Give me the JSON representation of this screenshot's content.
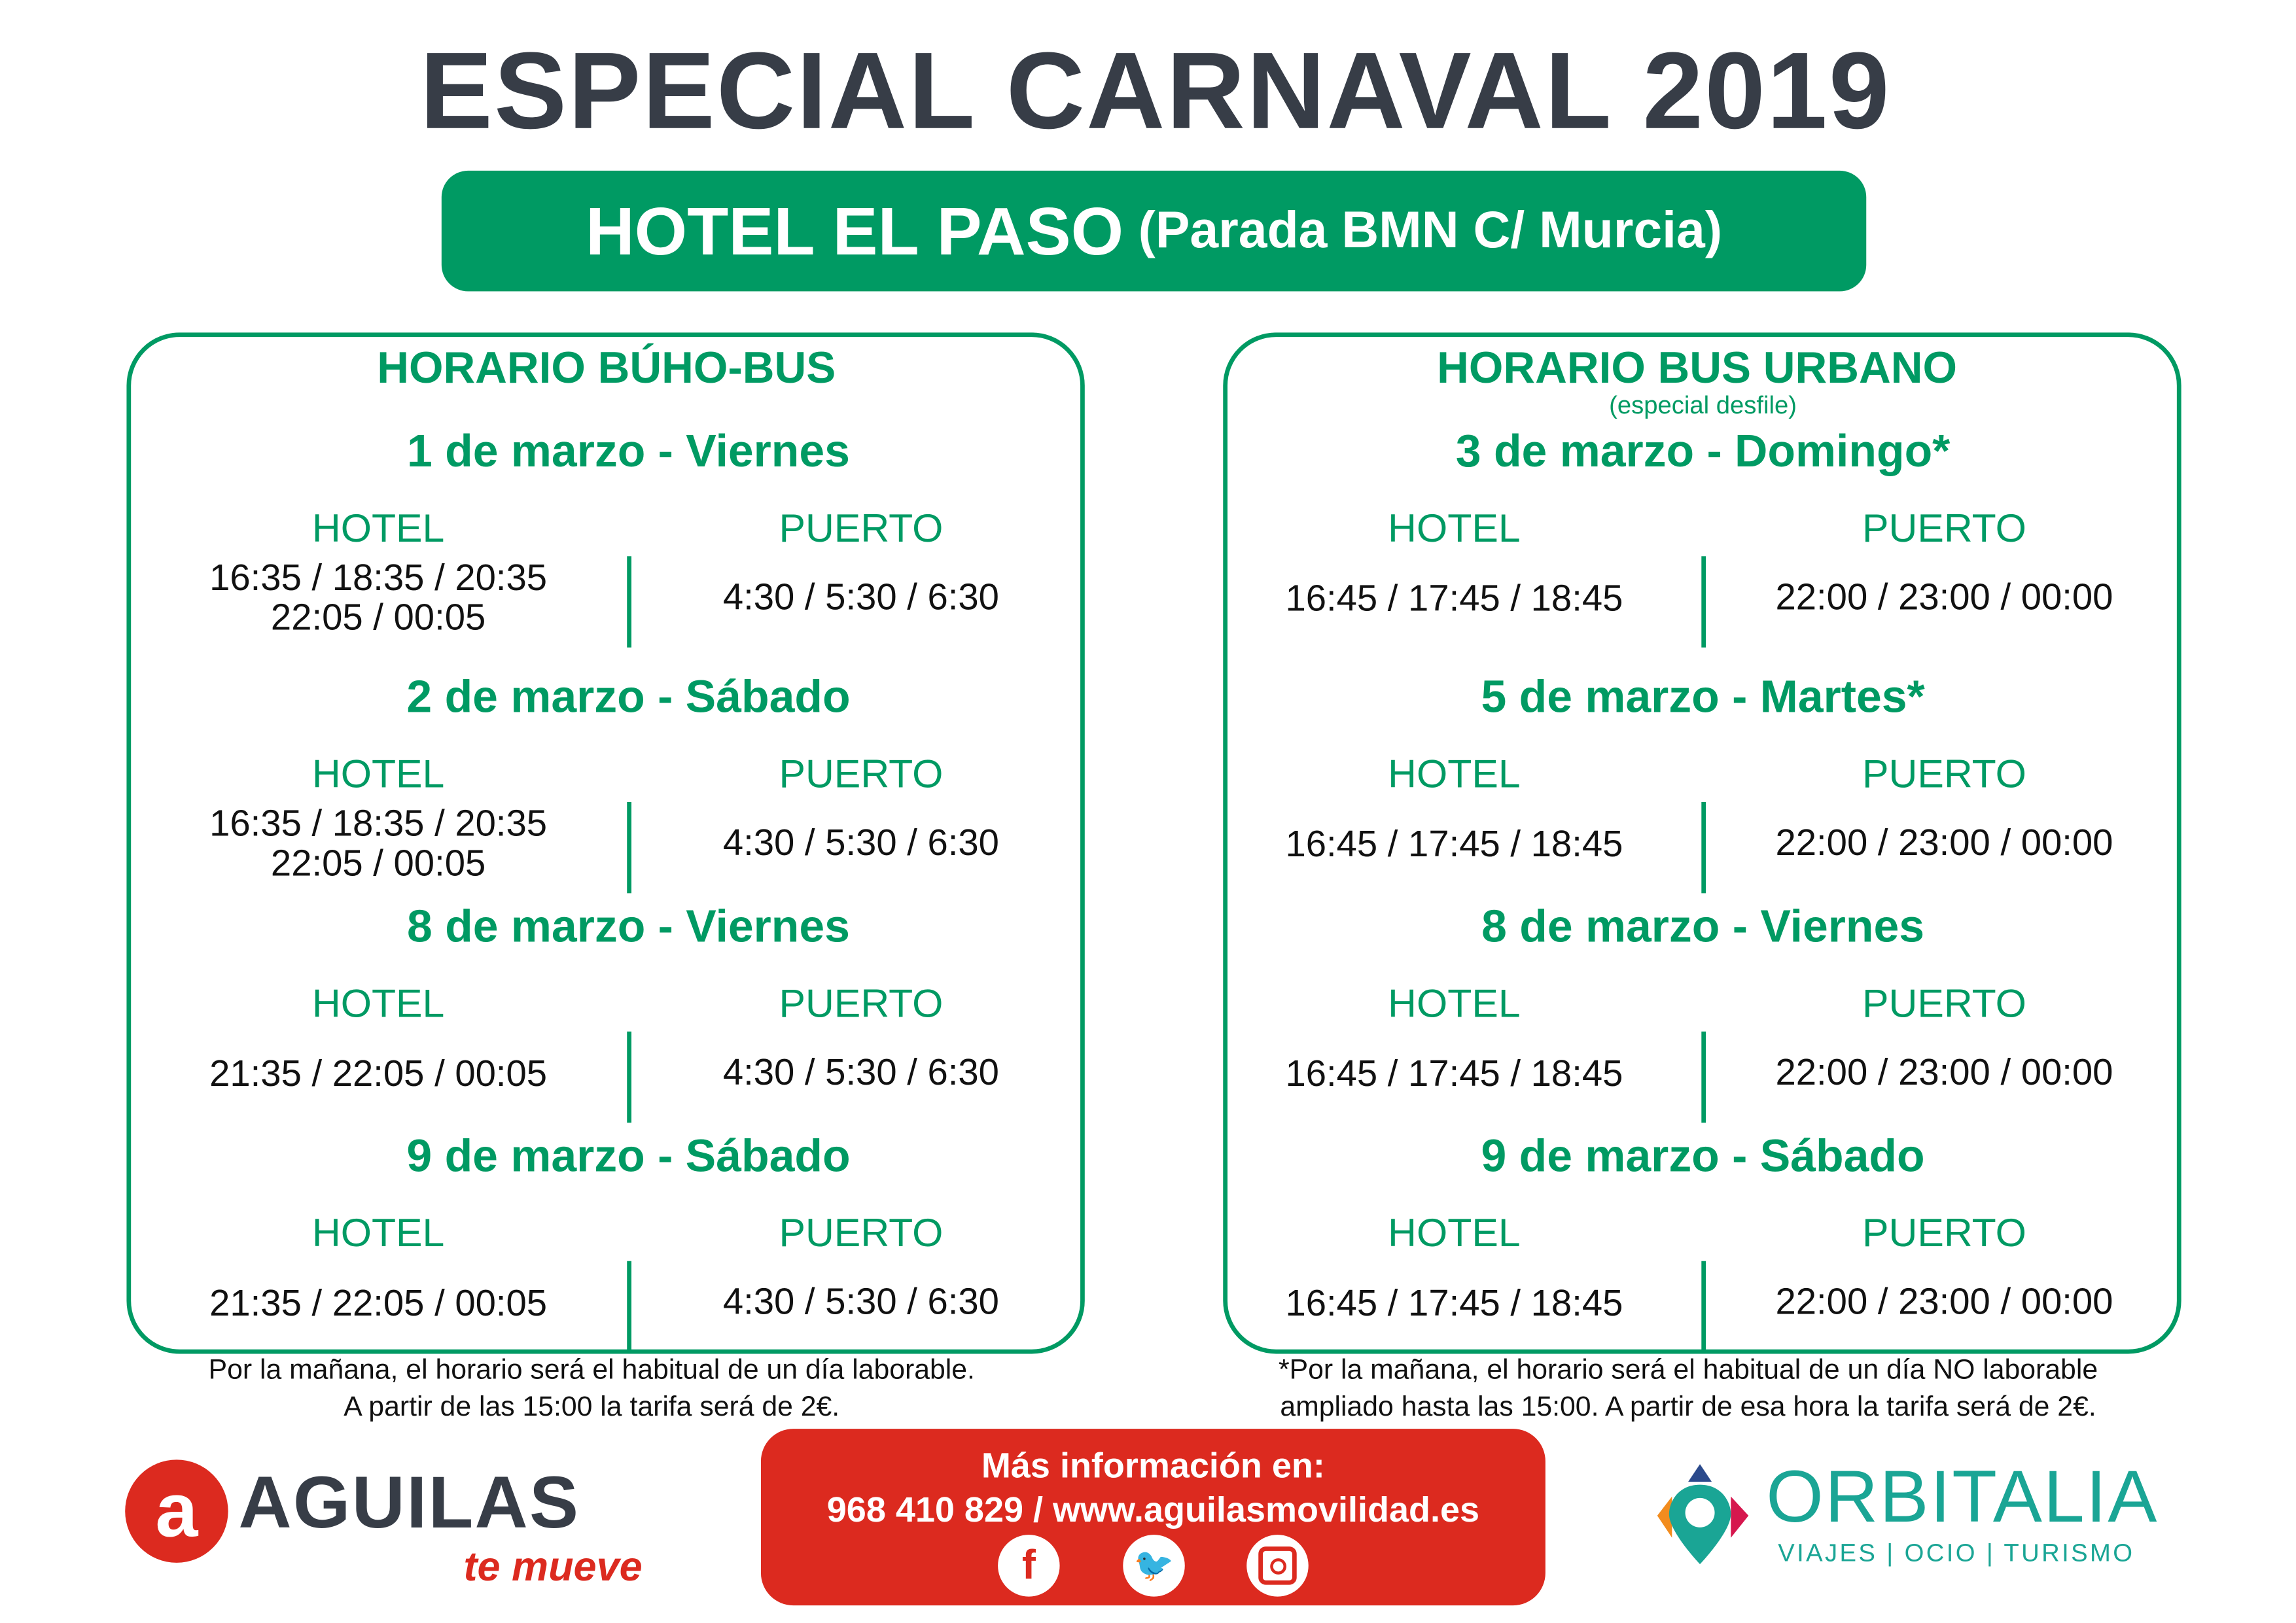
{
  "title": "ESPECIAL CARNAVAL 2019",
  "banner": {
    "main": "HOTEL EL PASO",
    "stop": "(Parada BMN C/ Murcia)"
  },
  "colors": {
    "green": "#009a63",
    "red": "#dc2a1f",
    "dark": "#373d47",
    "teal": "#1aa595"
  },
  "left": {
    "header": "HORARIO BÚHO-BUS",
    "subheader": "",
    "sections": [
      {
        "date": "1 de marzo - Viernes",
        "hotel_label": "HOTEL",
        "puerto_label": "PUERTO",
        "hotel_times": [
          "16:35 / 18:35 / 20:35",
          "22:05 / 00:05"
        ],
        "puerto_times": "4:30 / 5:30 / 6:30"
      },
      {
        "date": "2 de marzo - Sábado",
        "hotel_label": "HOTEL",
        "puerto_label": "PUERTO",
        "hotel_times": [
          "16:35 / 18:35 / 20:35",
          "22:05 / 00:05"
        ],
        "puerto_times": "4:30 / 5:30 / 6:30"
      },
      {
        "date": "8 de marzo - Viernes",
        "hotel_label": "HOTEL",
        "puerto_label": "PUERTO",
        "hotel_times": [
          "21:35 / 22:05 / 00:05"
        ],
        "puerto_times": "4:30 / 5:30 / 6:30"
      },
      {
        "date": "9 de marzo - Sábado",
        "hotel_label": "HOTEL",
        "puerto_label": "PUERTO",
        "hotel_times": [
          "21:35 / 22:05 / 00:05"
        ],
        "puerto_times": "4:30 / 5:30 / 6:30"
      }
    ],
    "note": [
      "Por la mañana, el horario será el habitual de un día laborable.",
      "A partir de las 15:00 la tarifa será de 2€."
    ]
  },
  "right": {
    "header": "HORARIO BUS URBANO",
    "subheader": "(especial desfile)",
    "sections": [
      {
        "date": "3 de marzo - Domingo*",
        "hotel_label": "HOTEL",
        "puerto_label": "PUERTO",
        "hotel_times": [
          "16:45 / 17:45 / 18:45"
        ],
        "puerto_times": "22:00 / 23:00 / 00:00"
      },
      {
        "date": "5 de marzo - Martes*",
        "hotel_label": "HOTEL",
        "puerto_label": "PUERTO",
        "hotel_times": [
          "16:45 / 17:45 / 18:45"
        ],
        "puerto_times": "22:00 / 23:00 / 00:00"
      },
      {
        "date": "8 de marzo - Viernes",
        "hotel_label": "HOTEL",
        "puerto_label": "PUERTO",
        "hotel_times": [
          "16:45 / 17:45 / 18:45"
        ],
        "puerto_times": "22:00 / 23:00 / 00:00"
      },
      {
        "date": "9 de marzo - Sábado",
        "hotel_label": "HOTEL",
        "puerto_label": "PUERTO",
        "hotel_times": [
          "16:45 / 17:45 / 18:45"
        ],
        "puerto_times": "22:00 / 23:00 / 00:00"
      }
    ],
    "note": [
      "*Por la mañana, el horario será el habitual de un día NO laborable",
      "ampliado hasta las 15:00. A partir de esa hora la tarifa será de 2€."
    ]
  },
  "footer": {
    "aguilas": {
      "name": "AGUILAS",
      "tagline": "te mueve"
    },
    "info": {
      "title": "Más información en:",
      "contact": "968 410 829 / www.aguilasmovilidad.es",
      "social": [
        "facebook-icon",
        "twitter-icon",
        "instagram-icon"
      ]
    },
    "orbitalia": {
      "name": "ORBITALIA",
      "tagline": "VIAJES | OCIO | TURISMO"
    }
  }
}
